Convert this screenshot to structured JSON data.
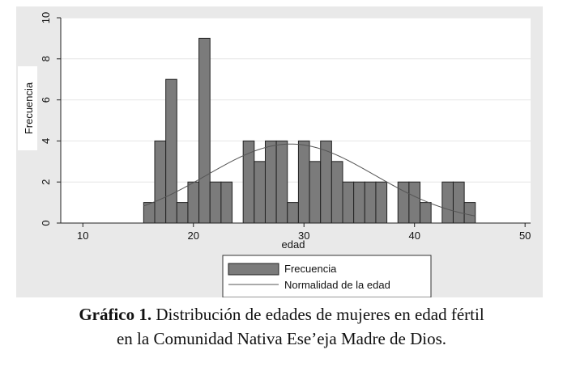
{
  "chart_data": {
    "type": "bar",
    "subtype": "histogram",
    "xlabel": "edad",
    "ylabel": "Frecuencia",
    "xlim": [
      8,
      50.5
    ],
    "ylim": [
      0,
      10
    ],
    "xticks": [
      10,
      20,
      30,
      40,
      50
    ],
    "yticks": [
      0,
      2,
      4,
      6,
      8,
      10
    ],
    "bin_width": 1,
    "bars": [
      {
        "x": 16,
        "y": 1
      },
      {
        "x": 17,
        "y": 4
      },
      {
        "x": 18,
        "y": 7
      },
      {
        "x": 19,
        "y": 1
      },
      {
        "x": 20,
        "y": 2
      },
      {
        "x": 21,
        "y": 9
      },
      {
        "x": 22,
        "y": 2
      },
      {
        "x": 23,
        "y": 2
      },
      {
        "x": 25,
        "y": 4
      },
      {
        "x": 26,
        "y": 3
      },
      {
        "x": 27,
        "y": 4
      },
      {
        "x": 28,
        "y": 4
      },
      {
        "x": 29,
        "y": 1
      },
      {
        "x": 30,
        "y": 4
      },
      {
        "x": 31,
        "y": 3
      },
      {
        "x": 32,
        "y": 4
      },
      {
        "x": 33,
        "y": 3
      },
      {
        "x": 34,
        "y": 2
      },
      {
        "x": 35,
        "y": 2
      },
      {
        "x": 36,
        "y": 2
      },
      {
        "x": 37,
        "y": 2
      },
      {
        "x": 39,
        "y": 2
      },
      {
        "x": 40,
        "y": 2
      },
      {
        "x": 41,
        "y": 1
      },
      {
        "x": 43,
        "y": 2
      },
      {
        "x": 44,
        "y": 2
      },
      {
        "x": 45,
        "y": 1
      }
    ],
    "normal_curve": {
      "name": "Normalidad de la edad",
      "mean": 28.8,
      "sd": 7.6,
      "peak": 3.85,
      "x_range": [
        15.5,
        45.5
      ]
    },
    "legend": {
      "position": "bottom-center",
      "entries": [
        "Frecuencia",
        "Normalidad de la edad"
      ]
    },
    "grid": true,
    "colors": {
      "bar_fill": "#7b7b7b",
      "bar_stroke": "#222222",
      "curve": "#555555",
      "grid": "#e6e6e6",
      "plot_bg": "#ffffff",
      "figure_bg": "#e9e9e9"
    }
  },
  "caption": {
    "label": "Gráfico 1.",
    "line1": " Distribución de edades de mujeres en edad fértil",
    "line2": "en la Comunidad Nativa Ese’eja Madre de Dios."
  }
}
